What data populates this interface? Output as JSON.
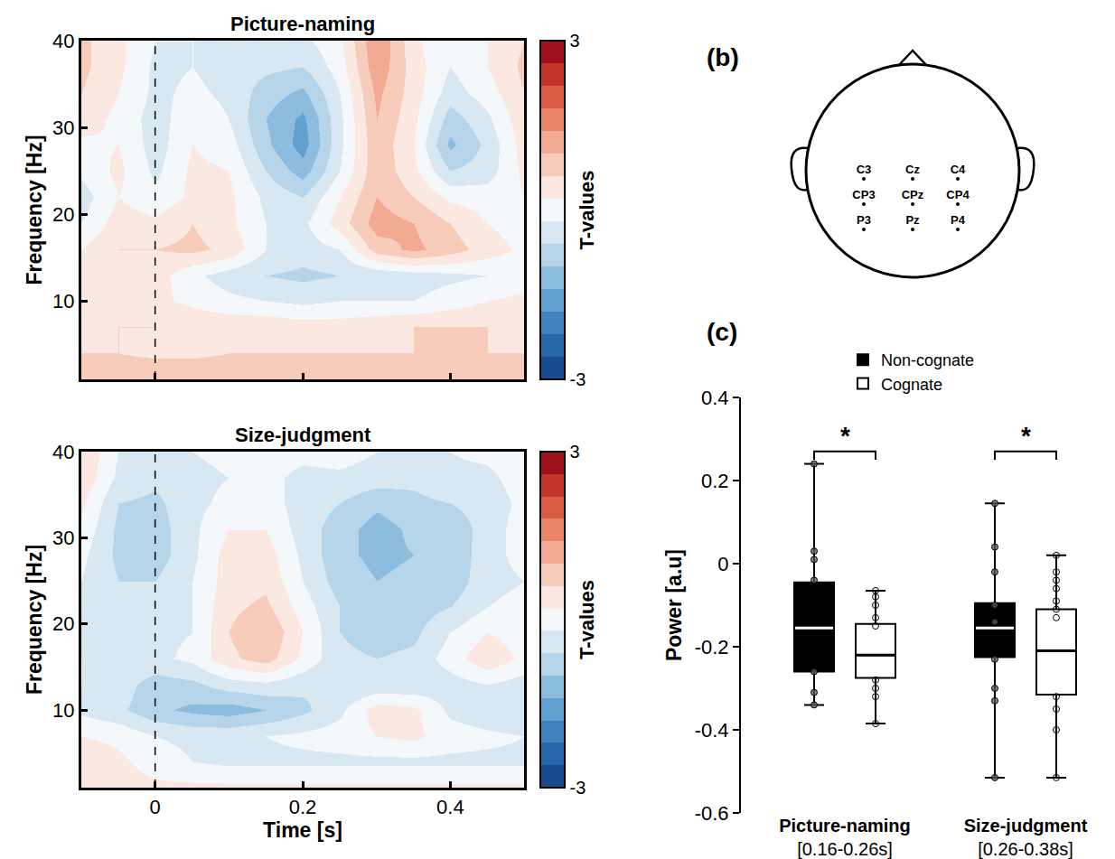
{
  "chart_data": [
    {
      "type": "heatmap",
      "title": "Picture-naming",
      "ylabel": "Frequency [Hz]",
      "x": [
        -0.1,
        -0.05,
        0,
        0.05,
        0.1,
        0.15,
        0.2,
        0.25,
        0.3,
        0.35,
        0.4,
        0.45,
        0.5
      ],
      "y": [
        1,
        4,
        7,
        10,
        13,
        16,
        19,
        22,
        25,
        28,
        31,
        34,
        37,
        40
      ],
      "z": [
        [
          1.0,
          1.0,
          1.0,
          1.0,
          1.0,
          1.0,
          1.0,
          1.0,
          1.0,
          1.0,
          1.0,
          1.0,
          1.0
        ],
        [
          0.6,
          0.6,
          0.5,
          0.5,
          0.6,
          0.6,
          0.6,
          0.6,
          0.6,
          0.6,
          0.6,
          0.6,
          0.6
        ],
        [
          0.5,
          0.6,
          0.6,
          0.5,
          0.5,
          0.5,
          0.4,
          0.4,
          0.5,
          0.6,
          0.6,
          0.6,
          0.5
        ],
        [
          0.4,
          0.4,
          0.3,
          0.1,
          -0.1,
          -0.2,
          -0.3,
          -0.2,
          -0.2,
          -0.2,
          0.0,
          0.2,
          0.3
        ],
        [
          0.5,
          0.5,
          0.4,
          -0.1,
          -0.4,
          -0.6,
          -0.7,
          -0.6,
          -0.5,
          -0.4,
          -0.3,
          -0.2,
          0.0
        ],
        [
          0.2,
          0.6,
          0.6,
          0.7,
          0.5,
          -0.2,
          -0.4,
          -0.2,
          0.8,
          1.1,
          0.8,
          0.4,
          0.1
        ],
        [
          -0.2,
          0.4,
          0.3,
          0.6,
          0.3,
          -0.2,
          -0.3,
          0.4,
          1.2,
          1.0,
          0.6,
          0.2,
          0.0
        ],
        [
          -0.4,
          0.2,
          -0.1,
          0.3,
          0.3,
          -0.3,
          -0.6,
          0.2,
          1.0,
          0.6,
          0.1,
          0.0,
          0.2
        ],
        [
          -0.1,
          0.3,
          -0.3,
          0.3,
          0.2,
          -0.6,
          -1.2,
          -0.2,
          0.9,
          0.3,
          -0.6,
          -0.4,
          0.3
        ],
        [
          0.1,
          0.2,
          -0.4,
          0.2,
          0.0,
          -0.9,
          -1.6,
          -0.3,
          0.9,
          0.2,
          -1.1,
          -0.5,
          0.4
        ],
        [
          0.4,
          0.1,
          -0.4,
          0.1,
          -0.2,
          -1.0,
          -1.5,
          -0.3,
          1.0,
          0.3,
          -0.8,
          -0.3,
          0.5
        ],
        [
          0.6,
          0.2,
          -0.3,
          -0.1,
          -0.3,
          -0.8,
          -1.1,
          -0.2,
          1.1,
          0.4,
          -0.4,
          0.0,
          0.6
        ],
        [
          0.7,
          0.3,
          -0.3,
          -0.2,
          -0.4,
          -0.5,
          -0.6,
          0.0,
          1.3,
          0.4,
          -0.2,
          0.2,
          0.7
        ],
        [
          0.7,
          0.3,
          -0.2,
          -0.2,
          -0.3,
          -0.3,
          -0.3,
          0.1,
          1.4,
          0.3,
          -0.2,
          0.2,
          0.6
        ]
      ],
      "xlim": [
        -0.1,
        0.5
      ],
      "ylim": [
        1,
        40
      ],
      "xticks": [
        0,
        0.2,
        0.4
      ],
      "yticks": [
        10,
        20,
        30,
        40
      ],
      "tick_labels": "y",
      "vline": 0,
      "colorbar": {
        "title": "T-values",
        "range": [
          -3,
          3
        ],
        "ticks": [
          -3,
          3
        ]
      }
    },
    {
      "type": "heatmap",
      "title": "Size-judgment",
      "xlabel": "Time [s]",
      "ylabel": "Frequency [Hz]",
      "x": [
        -0.1,
        -0.05,
        0,
        0.05,
        0.1,
        0.15,
        0.2,
        0.25,
        0.3,
        0.35,
        0.4,
        0.45,
        0.5
      ],
      "y": [
        1,
        4,
        7,
        10,
        13,
        16,
        19,
        22,
        25,
        28,
        31,
        34,
        37,
        40
      ],
      "z": [
        [
          0.4,
          0.4,
          0.3,
          0.3,
          0.3,
          0.3,
          0.3,
          0.3,
          0.3,
          0.3,
          0.3,
          0.3,
          0.3
        ],
        [
          0.5,
          0.3,
          0.0,
          -0.2,
          -0.3,
          -0.3,
          -0.3,
          -0.3,
          -0.3,
          -0.3,
          -0.3,
          -0.3,
          -0.3
        ],
        [
          0.2,
          0.1,
          -0.2,
          -0.3,
          -0.3,
          -0.2,
          -0.1,
          0.0,
          0.2,
          0.3,
          0.0,
          -0.1,
          -0.2
        ],
        [
          -0.3,
          -0.5,
          -0.9,
          -1.1,
          -1.2,
          -1.0,
          -0.7,
          -0.3,
          0.4,
          0.3,
          -0.3,
          -0.5,
          -0.6
        ],
        [
          -0.2,
          -0.4,
          -0.8,
          -0.7,
          -0.4,
          -0.3,
          -0.5,
          -0.6,
          -0.5,
          -0.5,
          -0.4,
          -0.2,
          -0.4
        ],
        [
          -0.2,
          -0.3,
          -0.3,
          -0.1,
          0.5,
          0.8,
          0.1,
          -0.5,
          -0.6,
          -0.5,
          0.0,
          0.5,
          0.1
        ],
        [
          -0.3,
          -0.4,
          -0.3,
          -0.2,
          0.6,
          1.0,
          0.2,
          -0.6,
          -0.8,
          -0.7,
          -0.2,
          0.2,
          0.0
        ],
        [
          -0.3,
          -0.5,
          -0.4,
          -0.2,
          0.5,
          0.7,
          0.0,
          -0.6,
          -0.9,
          -0.8,
          -0.6,
          -0.2,
          -0.1
        ],
        [
          -0.2,
          -0.6,
          -0.6,
          -0.2,
          0.4,
          0.5,
          -0.2,
          -0.8,
          -1.0,
          -0.9,
          -0.9,
          -0.3,
          -0.2
        ],
        [
          -0.1,
          -0.7,
          -0.8,
          -0.3,
          0.4,
          0.4,
          -0.3,
          -0.9,
          -1.1,
          -1.0,
          -1.0,
          -0.3,
          -0.1
        ],
        [
          0.1,
          -0.7,
          -0.8,
          -0.3,
          0.2,
          0.2,
          -0.4,
          -0.8,
          -1.2,
          -0.9,
          -0.9,
          -0.4,
          0.0
        ],
        [
          0.3,
          -0.6,
          -0.7,
          -0.3,
          -0.1,
          0.0,
          -0.4,
          -0.6,
          -0.9,
          -0.7,
          -0.6,
          -0.4,
          -0.1
        ],
        [
          0.5,
          -0.3,
          -0.5,
          -0.3,
          -0.2,
          -0.1,
          -0.3,
          -0.3,
          -0.4,
          -0.5,
          -0.3,
          -0.3,
          0.0
        ],
        [
          0.6,
          -0.2,
          -0.4,
          -0.2,
          -0.1,
          0.0,
          -0.1,
          0.0,
          -0.2,
          -0.4,
          -0.2,
          -0.1,
          0.1
        ]
      ],
      "xlim": [
        -0.1,
        0.5
      ],
      "ylim": [
        1,
        40
      ],
      "xticks": [
        0,
        0.2,
        0.4
      ],
      "yticks": [
        10,
        20,
        30,
        40
      ],
      "vline": 0,
      "colorbar": {
        "title": "T-values",
        "range": [
          -3,
          3
        ],
        "ticks": [
          -3,
          3
        ]
      }
    },
    {
      "type": "box",
      "panel": "(c)",
      "ylabel": "Power [a.u]",
      "categories": [
        "Picture-naming",
        "Size-judgment"
      ],
      "category_windows": [
        "[0.16-0.26s]",
        "[0.26-0.38s]"
      ],
      "ylim": [
        -0.6,
        0.4
      ],
      "yticks": [
        -0.6,
        -0.4,
        -0.2,
        0,
        0.2,
        0.4
      ],
      "legend": "top",
      "series": [
        {
          "name": "Non-cognate",
          "color": "#000000",
          "marker": "circle",
          "lower": [
            -0.34,
            -0.515
          ],
          "q1": [
            -0.26,
            -0.225
          ],
          "median": [
            -0.155,
            -0.155
          ],
          "q3": [
            -0.045,
            -0.095
          ],
          "upper": [
            0.24,
            0.145
          ],
          "points": [
            [
              0.24,
              0.03,
              0.01,
              -0.04,
              -0.26,
              -0.31,
              -0.34
            ],
            [
              0.145,
              0.04,
              -0.02,
              -0.1,
              -0.14,
              -0.23,
              -0.3,
              -0.33,
              -0.515
            ]
          ]
        },
        {
          "name": "Cognate",
          "color": "#ffffff",
          "marker": "circle-open",
          "lower": [
            -0.385,
            -0.515
          ],
          "q1": [
            -0.275,
            -0.315
          ],
          "median": [
            -0.22,
            -0.21
          ],
          "q3": [
            -0.145,
            -0.11
          ],
          "upper": [
            -0.065,
            0.02
          ],
          "points": [
            [
              -0.065,
              -0.08,
              -0.1,
              -0.13,
              -0.15,
              -0.28,
              -0.3,
              -0.32,
              -0.385
            ],
            [
              0.02,
              -0.02,
              -0.04,
              -0.06,
              -0.09,
              -0.11,
              -0.13,
              -0.32,
              -0.35,
              -0.4,
              -0.515
            ]
          ]
        }
      ],
      "annotations": [
        {
          "category": "Picture-naming",
          "text": "*"
        },
        {
          "category": "Size-judgment",
          "text": "*"
        }
      ]
    }
  ],
  "head_diagram": {
    "panel": "(b)",
    "electrodes": [
      [
        "C3",
        "Cz",
        "C4"
      ],
      [
        "CP3",
        "CPz",
        "CP4"
      ],
      [
        "P3",
        "Pz",
        "P4"
      ]
    ]
  }
}
